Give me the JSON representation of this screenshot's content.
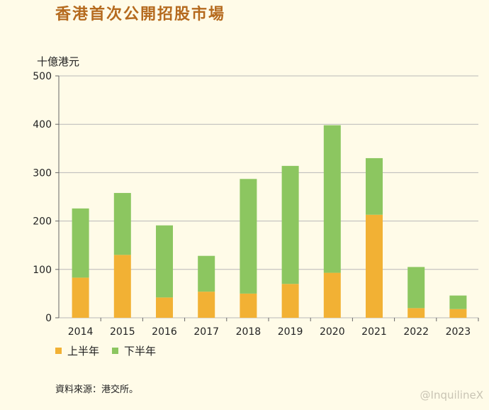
{
  "title": "香港首次公開招股市場",
  "source": "資料來源：港交所。",
  "watermark": "@InquilineX",
  "colors": {
    "h1": "#f2b134",
    "h2": "#8cc660",
    "axis": "#666666",
    "grid": "#b8b8b8"
  },
  "chart_data": {
    "type": "bar",
    "stacked": true,
    "ylabel": "十億港元",
    "ylim": [
      0,
      500
    ],
    "yticks": [
      0,
      100,
      200,
      300,
      400,
      500
    ],
    "categories": [
      "2014",
      "2015",
      "2016",
      "2017",
      "2018",
      "2019",
      "2020",
      "2021",
      "2022",
      "2023"
    ],
    "series": [
      {
        "name": "上半年",
        "values": [
          83,
          130,
          42,
          54,
          50,
          70,
          93,
          213,
          20,
          18
        ]
      },
      {
        "name": "下半年",
        "values": [
          143,
          128,
          149,
          74,
          237,
          244,
          305,
          117,
          85,
          28
        ]
      }
    ],
    "legend_position": "bottom-left"
  }
}
